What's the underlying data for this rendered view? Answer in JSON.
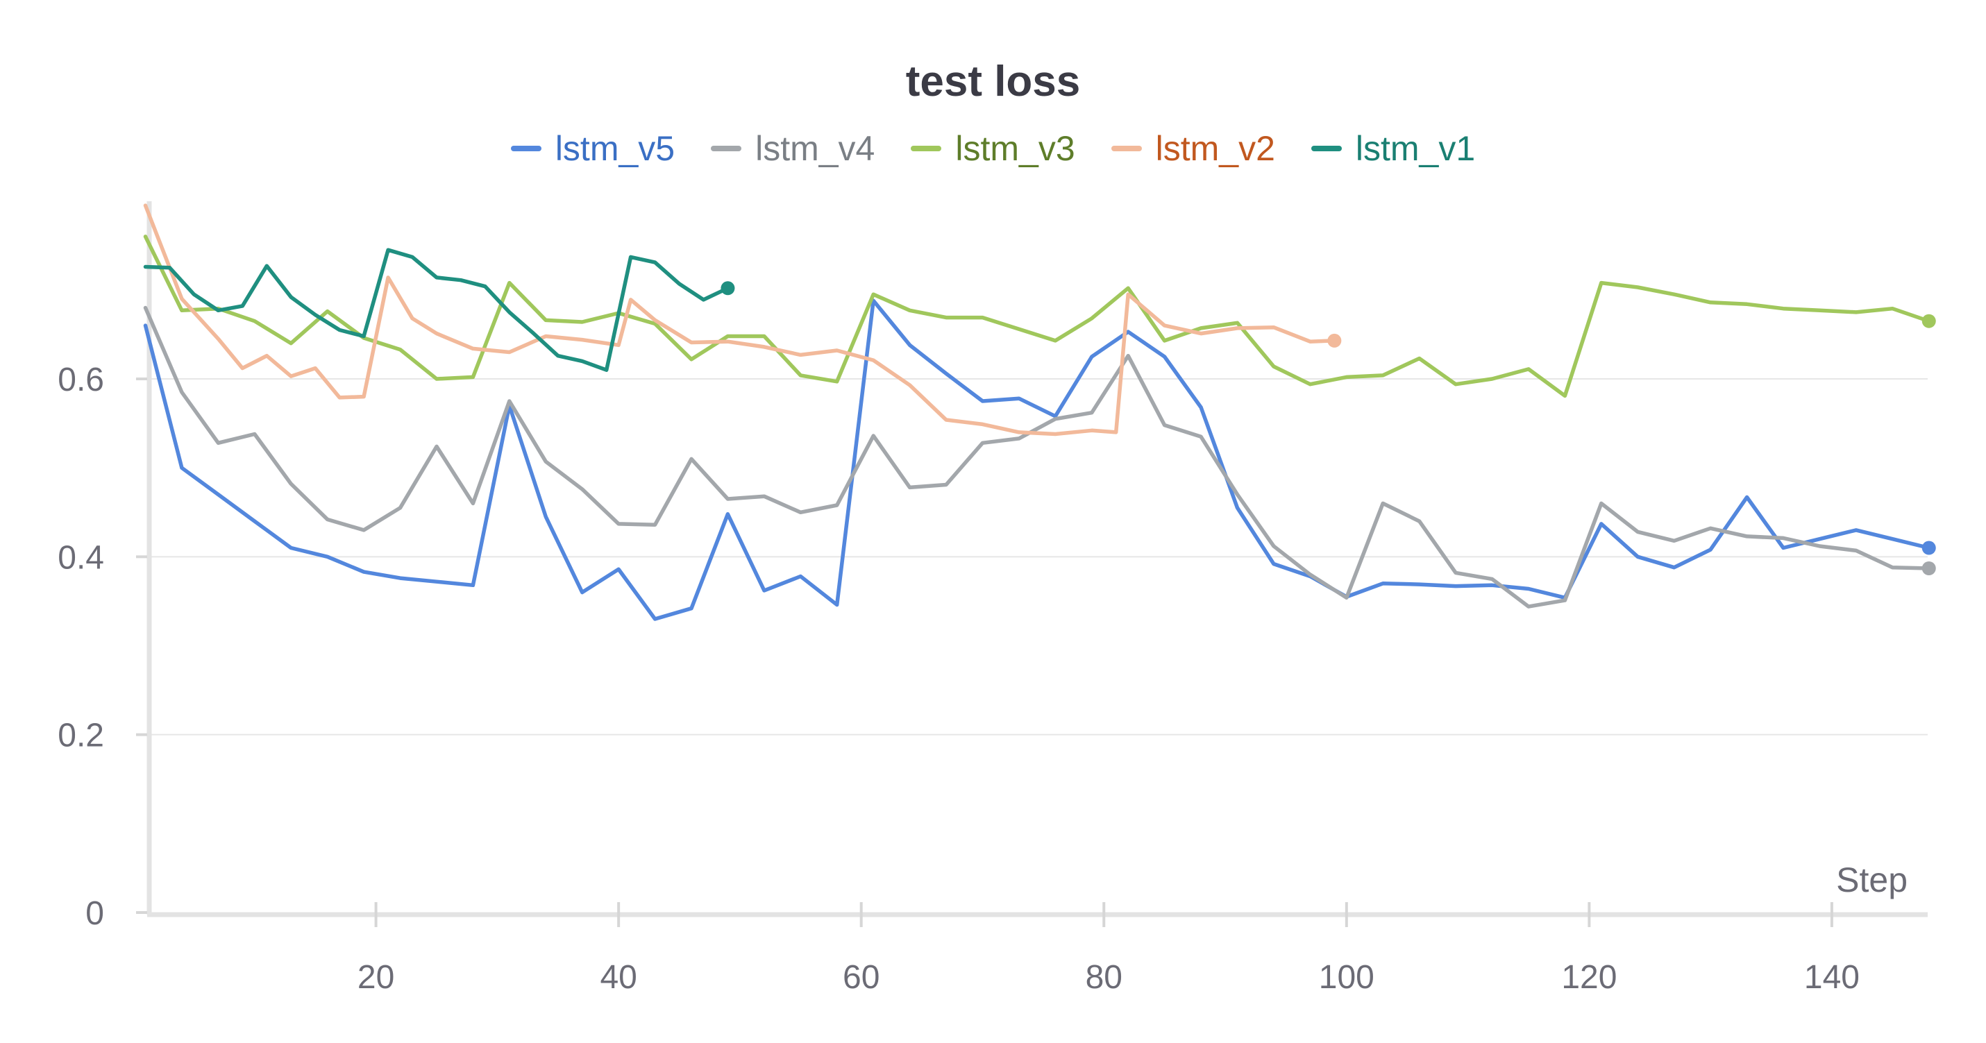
{
  "chart_data": {
    "type": "line",
    "title": "test loss",
    "xlabel": "Step",
    "ylabel": "",
    "xlim": [
      1,
      148
    ],
    "ylim": [
      0,
      0.8
    ],
    "xticks": [
      20,
      40,
      60,
      80,
      100,
      120,
      140
    ],
    "yticks": [
      0,
      0.2,
      0.4,
      0.6
    ],
    "ytick_labels": [
      "0",
      "0.2",
      "0.4",
      "0.6"
    ],
    "grid": true,
    "legend_position": "top",
    "series": [
      {
        "name": "lstm_v5",
        "color": "#5387dd",
        "legend_text_color": "#3a6fc4",
        "x": [
          1,
          4,
          7,
          10,
          13,
          16,
          19,
          22,
          25,
          28,
          31,
          34,
          37,
          40,
          43,
          46,
          49,
          52,
          55,
          58,
          61,
          64,
          67,
          70,
          73,
          76,
          79,
          82,
          85,
          88,
          91,
          94,
          97,
          100,
          103,
          106,
          109,
          112,
          115,
          118,
          121,
          124,
          127,
          130,
          133,
          136,
          139,
          142,
          145,
          148
        ],
        "y": [
          0.66,
          0.5,
          0.47,
          0.44,
          0.41,
          0.4,
          0.383,
          0.376,
          0.372,
          0.368,
          0.57,
          0.445,
          0.36,
          0.386,
          0.33,
          0.342,
          0.448,
          0.362,
          0.378,
          0.346,
          0.688,
          0.638,
          0.606,
          0.575,
          0.578,
          0.558,
          0.625,
          0.653,
          0.625,
          0.568,
          0.455,
          0.392,
          0.378,
          0.355,
          0.37,
          0.369,
          0.367,
          0.368,
          0.364,
          0.354,
          0.437,
          0.4,
          0.388,
          0.408,
          0.467,
          0.41,
          0.42,
          0.43,
          0.42,
          0.41
        ]
      },
      {
        "name": "lstm_v4",
        "color": "#a3a7ab",
        "legend_text_color": "#7a7f85",
        "x": [
          1,
          4,
          7,
          10,
          13,
          16,
          19,
          22,
          25,
          28,
          31,
          34,
          37,
          40,
          43,
          46,
          49,
          52,
          55,
          58,
          61,
          64,
          67,
          70,
          73,
          76,
          79,
          82,
          85,
          88,
          91,
          94,
          97,
          100,
          103,
          106,
          109,
          112,
          115,
          118,
          121,
          124,
          127,
          130,
          133,
          136,
          139,
          142,
          145,
          148
        ],
        "y": [
          0.68,
          0.585,
          0.528,
          0.538,
          0.482,
          0.442,
          0.43,
          0.455,
          0.524,
          0.46,
          0.575,
          0.507,
          0.476,
          0.437,
          0.436,
          0.51,
          0.465,
          0.468,
          0.45,
          0.458,
          0.536,
          0.478,
          0.481,
          0.528,
          0.533,
          0.555,
          0.562,
          0.626,
          0.548,
          0.535,
          0.47,
          0.412,
          0.38,
          0.354,
          0.46,
          0.44,
          0.382,
          0.375,
          0.344,
          0.351,
          0.46,
          0.428,
          0.418,
          0.432,
          0.423,
          0.421,
          0.412,
          0.407,
          0.388,
          0.387
        ]
      },
      {
        "name": "lstm_v3",
        "color": "#a0c75c",
        "legend_text_color": "#5e7d2a",
        "x": [
          1,
          4,
          7,
          10,
          13,
          16,
          19,
          22,
          25,
          28,
          31,
          34,
          37,
          40,
          43,
          46,
          49,
          52,
          55,
          58,
          61,
          64,
          67,
          70,
          73,
          76,
          79,
          82,
          85,
          88,
          91,
          94,
          97,
          100,
          103,
          106,
          109,
          112,
          115,
          118,
          121,
          124,
          127,
          130,
          133,
          136,
          139,
          142,
          145,
          148
        ],
        "y": [
          0.76,
          0.677,
          0.679,
          0.665,
          0.64,
          0.676,
          0.646,
          0.633,
          0.6,
          0.602,
          0.708,
          0.666,
          0.664,
          0.674,
          0.662,
          0.622,
          0.648,
          0.648,
          0.604,
          0.597,
          0.695,
          0.677,
          0.669,
          0.669,
          0.656,
          0.643,
          0.668,
          0.702,
          0.643,
          0.657,
          0.663,
          0.614,
          0.594,
          0.602,
          0.604,
          0.623,
          0.594,
          0.6,
          0.611,
          0.581,
          0.708,
          0.703,
          0.695,
          0.686,
          0.684,
          0.679,
          0.677,
          0.675,
          0.679,
          0.665
        ]
      },
      {
        "name": "lstm_v2",
        "color": "#f2b99a",
        "legend_text_color": "#c1581f",
        "x": [
          1,
          4,
          7,
          9,
          11,
          13,
          15,
          17,
          19,
          21,
          23,
          25,
          28,
          31,
          34,
          37,
          40,
          41,
          43,
          46,
          49,
          52,
          55,
          58,
          61,
          64,
          67,
          70,
          73,
          76,
          79,
          81,
          82,
          85,
          88,
          91,
          94,
          97,
          99
        ],
        "y": [
          0.795,
          0.69,
          0.645,
          0.612,
          0.626,
          0.603,
          0.612,
          0.579,
          0.58,
          0.714,
          0.668,
          0.651,
          0.634,
          0.63,
          0.648,
          0.644,
          0.638,
          0.689,
          0.666,
          0.641,
          0.642,
          0.636,
          0.627,
          0.632,
          0.621,
          0.593,
          0.554,
          0.549,
          0.54,
          0.538,
          0.542,
          0.54,
          0.695,
          0.66,
          0.651,
          0.657,
          0.658,
          0.642,
          0.643
        ]
      },
      {
        "name": "lstm_v1",
        "color": "#1f8f80",
        "legend_text_color": "#1a7f72",
        "x": [
          1,
          3,
          5,
          7,
          9,
          11,
          13,
          15,
          17,
          19,
          21,
          23,
          25,
          27,
          29,
          31,
          33,
          35,
          37,
          39,
          41,
          43,
          45,
          47,
          49
        ],
        "y": [
          0.726,
          0.725,
          0.695,
          0.677,
          0.682,
          0.727,
          0.692,
          0.672,
          0.655,
          0.648,
          0.745,
          0.737,
          0.714,
          0.711,
          0.704,
          0.675,
          0.651,
          0.626,
          0.62,
          0.61,
          0.737,
          0.731,
          0.707,
          0.689,
          0.702
        ]
      }
    ]
  }
}
